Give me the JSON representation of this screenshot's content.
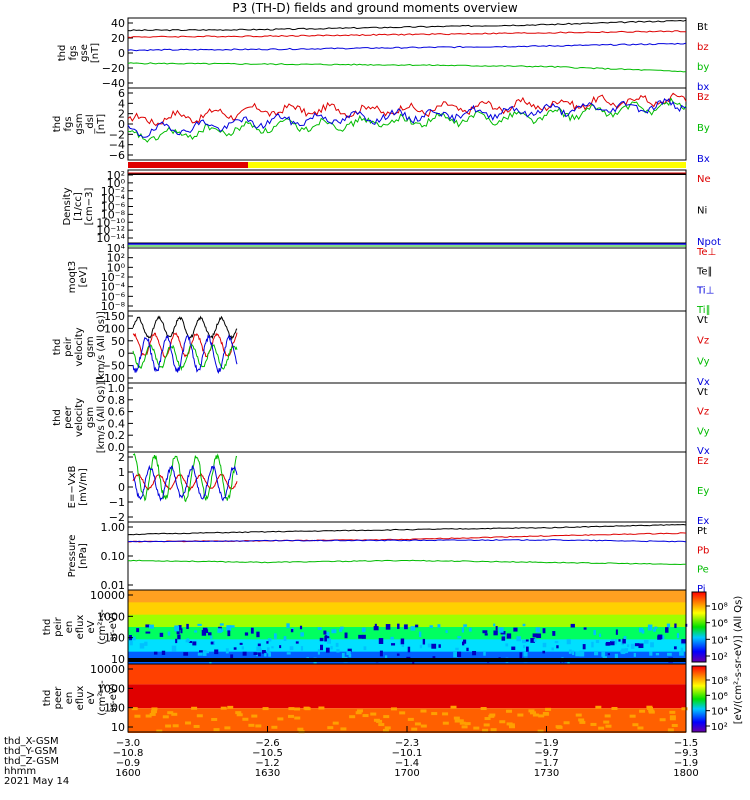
{
  "title": "P3 (TH-D) fields and ground moments overview",
  "panels": [
    {
      "id": "fgs_gse",
      "ylabel": [
        "thd",
        "fgs",
        "gse",
        "[nT]"
      ],
      "yticks": [
        "40",
        "20",
        "0",
        "−20",
        "−40"
      ],
      "legend": [
        {
          "text": "Bt",
          "color": "#000000"
        },
        {
          "text": "bz",
          "color": "#dd0000"
        },
        {
          "text": "by",
          "color": "#00bb00"
        },
        {
          "text": "bx",
          "color": "#0000dd"
        }
      ]
    },
    {
      "id": "fgs_dsl",
      "ylabel": [
        "thd",
        "fgs",
        "gsm",
        "_dsl",
        "[nT]"
      ],
      "yticks": [
        "6",
        "4",
        "2",
        "0",
        "−2",
        "−4",
        "−6"
      ],
      "legend": [
        {
          "text": "Bz",
          "color": "#dd0000"
        },
        {
          "text": "By",
          "color": "#00bb00"
        },
        {
          "text": "Bx",
          "color": "#0000dd"
        }
      ]
    },
    {
      "id": "density",
      "ylabel": [
        "Density",
        "[1/cc]",
        "[cm−3]"
      ],
      "yticks": [
        "10²",
        "10⁰",
        "10⁻²",
        "10⁻⁴",
        "10⁻⁶",
        "10⁻⁸",
        "10⁻¹⁰",
        "10⁻¹²",
        "10⁻¹⁴"
      ],
      "legend": [
        {
          "text": "Ne",
          "color": "#dd0000"
        },
        {
          "text": "Ni",
          "color": "#000000"
        },
        {
          "text": "Npot",
          "color": "#0000dd"
        }
      ]
    },
    {
      "id": "temp",
      "ylabel": [
        "moqt3",
        "[eV]"
      ],
      "yticks": [
        "10⁴",
        "10²",
        "10⁰",
        "10⁻²",
        "10⁻⁴",
        "10⁻⁶",
        "10⁻⁸"
      ],
      "legend": [
        {
          "text": "Te⊥",
          "color": "#dd0000"
        },
        {
          "text": "Te∥",
          "color": "#000000"
        },
        {
          "text": "Ti⊥",
          "color": "#0000dd"
        },
        {
          "text": "Ti∥",
          "color": "#00bb00"
        }
      ]
    },
    {
      "id": "peir_vel",
      "ylabel": [
        "thd",
        "peir",
        "velocity",
        "gsm",
        "[km/s (All Qs)]"
      ],
      "yticks": [
        "150",
        "100",
        "50",
        "0",
        "−50",
        "−100"
      ],
      "legend": [
        {
          "text": "Vt",
          "color": "#000000"
        },
        {
          "text": "Vz",
          "color": "#dd0000"
        },
        {
          "text": "Vy",
          "color": "#00bb00"
        },
        {
          "text": "Vx",
          "color": "#0000dd"
        }
      ]
    },
    {
      "id": "peer_vel",
      "ylabel": [
        "thd",
        "peer",
        "velocity",
        "gsm",
        "[km/s (All Qs)]"
      ],
      "yticks": [
        "1.0",
        "0.8",
        "0.6",
        "0.4",
        "0.2",
        "0.0"
      ],
      "legend": [
        {
          "text": "Vt",
          "color": "#000000"
        },
        {
          "text": "Vz",
          "color": "#dd0000"
        },
        {
          "text": "Vy",
          "color": "#00bb00"
        },
        {
          "text": "Vx",
          "color": "#0000dd"
        }
      ]
    },
    {
      "id": "efield",
      "ylabel": [
        "E=−VxB",
        "[mV/m]"
      ],
      "yticks": [
        "2",
        "1",
        "0",
        "−1",
        "−2"
      ],
      "legend": [
        {
          "text": "Ez",
          "color": "#dd0000"
        },
        {
          "text": "Ey",
          "color": "#00bb00"
        },
        {
          "text": "Ex",
          "color": "#0000dd"
        }
      ]
    },
    {
      "id": "pressure",
      "ylabel": [
        "Pressure",
        "[nPa]"
      ],
      "yticks": [
        "1.00",
        "0.10",
        "0.01"
      ],
      "legend": [
        {
          "text": "Pt",
          "color": "#000000"
        },
        {
          "text": "Pb",
          "color": "#dd0000"
        },
        {
          "text": "Pe",
          "color": "#00bb00"
        },
        {
          "text": "Pi",
          "color": "#0000dd"
        }
      ]
    },
    {
      "id": "peir_spec",
      "ylabel": [
        "thd",
        "peir",
        "en",
        "eflux",
        "eV",
        "(cm²-s-",
        "sr-eV)"
      ],
      "yticks": [
        "10000",
        "1000",
        "100",
        "10"
      ]
    },
    {
      "id": "peer_spec",
      "ylabel": [
        "thd",
        "peer",
        "en",
        "eflux",
        "eV",
        "(cm²-s-",
        "sr-eV)"
      ],
      "yticks": [
        "10000",
        "1000",
        "100",
        "10"
      ]
    }
  ],
  "colorbar": {
    "label": "[eV/(cm²-s-sr-eV)] (All Qs)",
    "upper_ticks": [
      "10⁸",
      "10⁶",
      "10⁴",
      "10²"
    ],
    "lower_ticks": [
      "10⁸",
      "10⁶",
      "10⁴",
      "10²"
    ]
  },
  "footer": {
    "row_labels": [
      "thd_X-GSM",
      "thd_Y-GSM",
      "thd_Z-GSM",
      "hhmm",
      "2021 May 14"
    ],
    "columns": [
      {
        "values": [
          "−3.0",
          "−10.8",
          "−0.9",
          "1600"
        ]
      },
      {
        "values": [
          "−2.6",
          "−10.5",
          "−1.2",
          "1630"
        ]
      },
      {
        "values": [
          "−2.3",
          "−10.1",
          "−1.4",
          "1700"
        ]
      },
      {
        "values": [
          "−1.9",
          "−9.7",
          "−1.7",
          "1730"
        ]
      },
      {
        "values": [
          "−1.5",
          "−9.3",
          "−1.9",
          "1800"
        ]
      }
    ]
  },
  "chart_data": [
    {
      "type": "line",
      "title": "P3 (TH-D) fields and ground moments overview",
      "ylabel": "thd fgs gse [nT]",
      "ylim": [
        -40,
        45
      ],
      "x": [
        "1600",
        "1630",
        "1700",
        "1730",
        "1800"
      ],
      "series": [
        {
          "name": "Bt",
          "values": [
            30,
            31,
            34,
            37,
            42
          ]
        },
        {
          "name": "bz",
          "values": [
            22,
            23,
            25,
            27,
            29
          ]
        },
        {
          "name": "by",
          "values": [
            -10,
            -11,
            -12,
            -14,
            -20
          ]
        },
        {
          "name": "bx",
          "values": [
            6,
            7,
            9,
            11,
            14
          ]
        }
      ]
    },
    {
      "type": "line",
      "ylabel": "thd fgs gsm_dsl [nT]",
      "ylim": [
        -7,
        6
      ],
      "x": [
        "1600",
        "1630",
        "1700",
        "1730",
        "1800"
      ],
      "series": [
        {
          "name": "Bz",
          "values": [
            0,
            2,
            2,
            3,
            4
          ]
        },
        {
          "name": "By",
          "values": [
            -3,
            -1,
            0,
            1,
            3
          ]
        },
        {
          "name": "Bx",
          "values": [
            -2,
            0,
            1,
            2,
            3
          ]
        }
      ]
    },
    {
      "type": "line",
      "ylabel": "thd peir velocity gsm [km/s (All Qs)]",
      "ylim": [
        -100,
        160
      ],
      "x": [
        "1600",
        "1610",
        "1620",
        "1630"
      ],
      "series": [
        {
          "name": "Vt",
          "values": [
            90,
            130,
            100,
            80
          ]
        },
        {
          "name": "Vz",
          "values": [
            20,
            70,
            30,
            30
          ]
        },
        {
          "name": "Vy",
          "values": [
            -30,
            30,
            -20,
            0
          ]
        },
        {
          "name": "Vx",
          "values": [
            20,
            -70,
            60,
            10
          ]
        }
      ]
    },
    {
      "type": "line",
      "ylabel": "E=−VxB [mV/m]",
      "ylim": [
        -2.5,
        2.5
      ],
      "x": [
        "1600",
        "1610",
        "1620",
        "1630"
      ],
      "series": [
        {
          "name": "Ez",
          "values": [
            0.5,
            1.0,
            -0.5,
            0.5
          ]
        },
        {
          "name": "Ey",
          "values": [
            1.5,
            -1.8,
            1.8,
            1.2
          ]
        },
        {
          "name": "Ex",
          "values": [
            1.0,
            -1.5,
            1.2,
            0.5
          ]
        }
      ]
    },
    {
      "type": "line",
      "ylabel": "Pressure [nPa]",
      "ylim": [
        0.01,
        1.2
      ],
      "x": [
        "1600",
        "1630",
        "1700",
        "1730",
        "1800"
      ],
      "series": [
        {
          "name": "Pt",
          "values": [
            0.5,
            0.6,
            0.7,
            0.8,
            1.0
          ]
        },
        {
          "name": "Pb",
          "values": [
            0.3,
            0.32,
            0.35,
            0.45,
            0.55
          ]
        },
        {
          "name": "Pe",
          "values": [
            0.08,
            0.07,
            0.08,
            0.07,
            0.06
          ]
        },
        {
          "name": "Pi",
          "values": [
            0.3,
            0.32,
            0.33,
            0.34,
            0.3
          ]
        }
      ]
    }
  ]
}
